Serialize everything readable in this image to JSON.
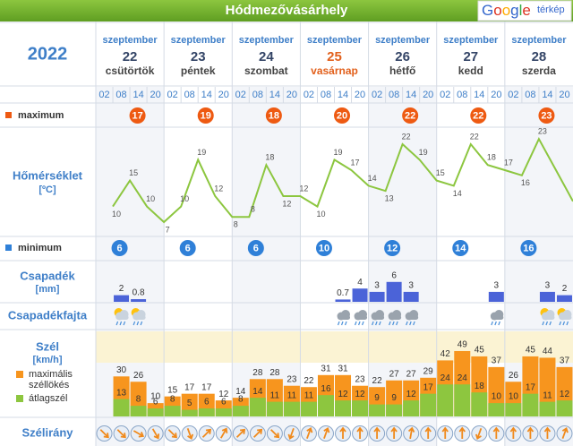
{
  "header": {
    "title": "Hódmezővásárhely",
    "logo": "Google",
    "logo_suffix": "térkép"
  },
  "year": "2022",
  "labels": {
    "maximum": "maximum",
    "temperature": "Hőmérséklet",
    "temperature_unit": "[ºC]",
    "minimum": "minimum",
    "precip": "Csapadék",
    "precip_unit": "[mm]",
    "precip_type": "Csapadékfajta",
    "wind": "Szél",
    "wind_unit": "[km/h]",
    "gust_legend": [
      "maximális",
      "széllökés"
    ],
    "avg_legend": "átlagszél",
    "wind_dir": "Szélirány"
  },
  "hours": [
    "02",
    "08",
    "14",
    "20"
  ],
  "days": [
    {
      "month": "szeptember",
      "day": "22",
      "weekday": "csütörtök",
      "color": "#334466"
    },
    {
      "month": "szeptember",
      "day": "23",
      "weekday": "péntek",
      "color": "#334466"
    },
    {
      "month": "szeptember",
      "day": "24",
      "weekday": "szombat",
      "color": "#334466"
    },
    {
      "month": "szeptember",
      "day": "25",
      "weekday": "vasárnap",
      "color": "#e2601c"
    },
    {
      "month": "szeptember",
      "day": "26",
      "weekday": "hétfő",
      "color": "#334466"
    },
    {
      "month": "szeptember",
      "day": "27",
      "weekday": "kedd",
      "color": "#334466"
    },
    {
      "month": "szeptember",
      "day": "28",
      "weekday": "szerda",
      "color": "#334466"
    }
  ],
  "temperature": {
    "max": [
      17,
      19,
      18,
      20,
      22,
      22,
      23
    ],
    "min": [
      6,
      6,
      6,
      10,
      12,
      14,
      16
    ],
    "values": [
      10,
      15,
      10,
      7,
      10,
      19,
      12,
      8,
      8,
      18,
      12,
      12,
      10,
      19,
      17,
      14,
      13,
      22,
      19,
      15,
      14,
      22,
      18,
      17,
      16,
      23,
      17,
      11
    ],
    "value_labels": [
      "10",
      "15",
      "10",
      "7",
      "10",
      "19",
      "12",
      "8",
      "8",
      "18",
      "12",
      "12",
      "10",
      "19",
      "17",
      "14",
      "13",
      "22",
      "19",
      "15",
      "14",
      "22",
      "18",
      "17",
      "16",
      "23",
      null,
      null
    ],
    "max_color": "#ee5a12",
    "min_color": "#2f80d8",
    "line_color": "#8cc63f"
  },
  "precipitation": {
    "values": [
      null,
      2,
      0.8,
      null,
      null,
      null,
      null,
      null,
      null,
      null,
      null,
      null,
      null,
      null,
      0.7,
      4,
      3,
      6,
      3,
      null,
      null,
      null,
      null,
      3,
      null,
      null,
      3,
      2
    ],
    "color": "#4b63d8"
  },
  "wind": {
    "gust": [
      null,
      30,
      26,
      10,
      15,
      17,
      17,
      12,
      14,
      28,
      28,
      23,
      22,
      31,
      31,
      23,
      22,
      27,
      27,
      29,
      42,
      49,
      45,
      37,
      26,
      45,
      44,
      37
    ],
    "average": [
      null,
      13,
      8,
      6,
      8,
      5,
      6,
      6,
      8,
      14,
      11,
      11,
      11,
      16,
      12,
      12,
      9,
      9,
      12,
      17,
      24,
      24,
      18,
      10,
      10,
      17,
      11,
      12
    ],
    "direction": [
      135,
      135,
      120,
      150,
      135,
      160,
      45,
      30,
      45,
      45,
      135,
      200,
      20,
      20,
      0,
      0,
      0,
      0,
      10,
      0,
      0,
      0,
      200,
      0,
      0,
      0,
      0,
      20
    ],
    "gust_color": "#f7951e",
    "avg_color": "#8dc63f"
  }
}
